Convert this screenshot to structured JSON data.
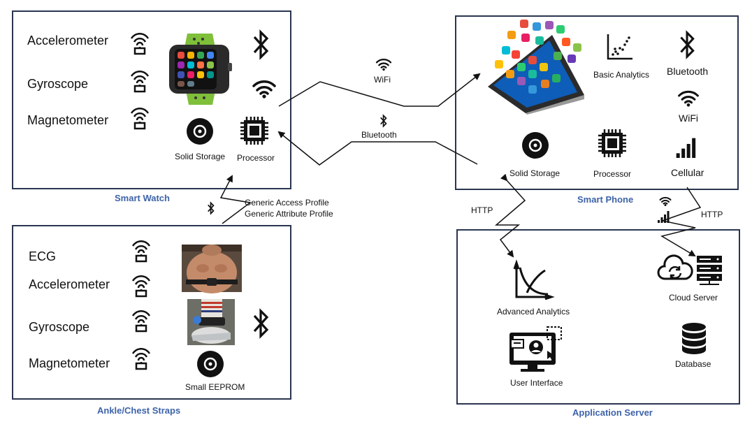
{
  "smart_watch": {
    "caption": "Smart Watch",
    "sensors": [
      "Accelerometer",
      "Gyroscope",
      "Magnetometer"
    ],
    "storage_label": "Solid Storage",
    "processor_label": "Processor"
  },
  "straps": {
    "caption": "Ankle/Chest Straps",
    "sensors": [
      "ECG",
      "Accelerometer",
      "Gyroscope",
      "Magnetometer"
    ],
    "eeprom_label": "Small EEPROM"
  },
  "smart_phone": {
    "caption": "Smart Phone",
    "analytics_label": "Basic Analytics",
    "bluetooth_label": "Bluetooth",
    "wifi_label": "WiFi",
    "storage_label": "Solid Storage",
    "processor_label": "Processor",
    "cellular_label": "Cellular"
  },
  "app_server": {
    "caption": "Application Server",
    "advanced_analytics_label": "Advanced Analytics",
    "cloud_server_label": "Cloud Server",
    "user_interface_label": "User Interface",
    "database_label": "Database"
  },
  "links": {
    "wifi_label": "WiFi",
    "bluetooth_label": "Bluetooth",
    "profile_line1": "Generic Access Profile",
    "profile_line2": "Generic Attribute Profile",
    "http_left": "HTTP",
    "http_right": "HTTP"
  },
  "colors": {
    "border": "#2a3550",
    "caption": "#3d63a8",
    "watch_band": "#8bc53f"
  },
  "icons": [
    "wireless-sensor-icon",
    "bluetooth-icon",
    "wifi-icon",
    "disc-icon",
    "chip-icon",
    "scatter-chart-icon",
    "cellular-signal-icon",
    "cloud-sync-icon",
    "server-rack-icon",
    "database-icon",
    "analytics-curve-icon",
    "user-interface-monitor-icon"
  ]
}
